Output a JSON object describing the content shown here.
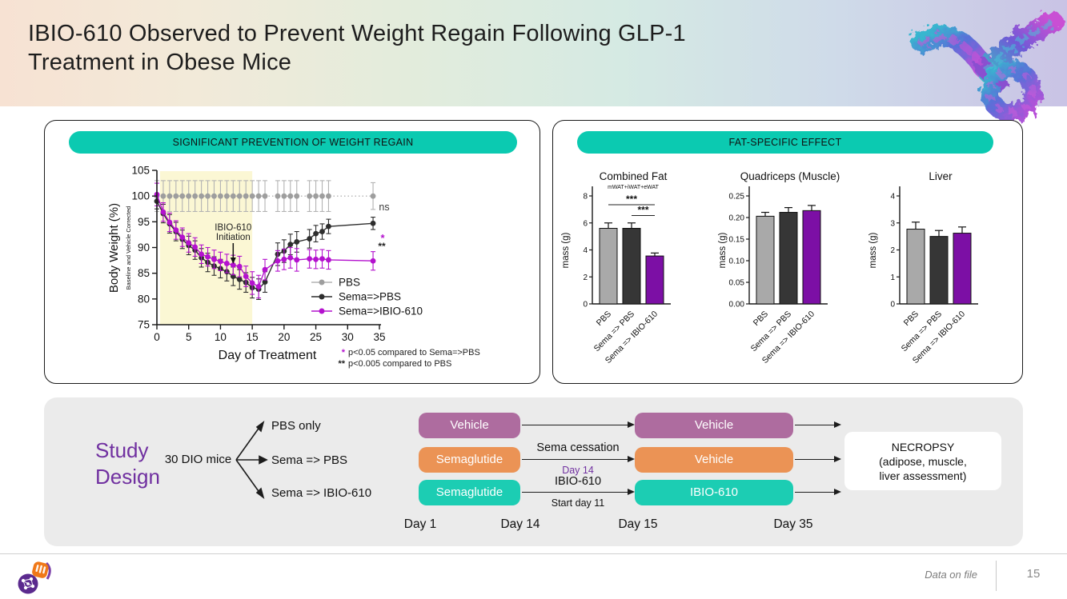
{
  "slide": {
    "title_line1": "IBIO-610 Observed to Prevent Weight Regain Following GLP-1",
    "title_line2": "Treatment in Obese Mice"
  },
  "panels": {
    "weight_regain": {
      "header": "SIGNIFICANT PREVENTION OF WEIGHT REGAIN"
    },
    "fat_effect": {
      "header": "FAT-SPECIFIC EFFECT"
    }
  },
  "chart_data": [
    {
      "type": "line",
      "title": "",
      "xlabel": "Day of Treatment",
      "ylabel": "Body Weight (%)",
      "ylabel_sub": "Baseline and Vehicle Corrected",
      "xlim": [
        0,
        36
      ],
      "ylim": [
        75,
        105
      ],
      "xticks": [
        0,
        5,
        10,
        15,
        20,
        25,
        30,
        35
      ],
      "yticks": [
        75,
        80,
        85,
        90,
        95,
        100,
        105
      ],
      "grid": false,
      "legend_position": "inside lower right",
      "shaded_region": {
        "x_start": 0.5,
        "x_end": 15,
        "color": "#fbf7d4"
      },
      "annotation": {
        "lines": [
          "IBIO-610",
          "Initiation"
        ],
        "arrow_day": 12,
        "arrow_value": 88
      },
      "sig_marks": [
        {
          "text": "ns",
          "color": "#3a3a3a"
        },
        {
          "text": "*",
          "color": "#b412ce"
        },
        {
          "text": "**",
          "color": "#222222"
        }
      ],
      "footnotes": [
        {
          "marker": "*",
          "marker_color": "#b412ce",
          "text": "p<0.05 compared to Sema=>PBS"
        },
        {
          "marker": "**",
          "marker_color": "#222222",
          "text": "p<0.005 compared to PBS"
        }
      ],
      "x": [
        0,
        1,
        2,
        3,
        4,
        5,
        6,
        7,
        8,
        9,
        10,
        11,
        12,
        13,
        14,
        15,
        16,
        17,
        19,
        20,
        21,
        22,
        24,
        25,
        26,
        27,
        34
      ],
      "series": [
        {
          "name": "PBS",
          "color": "#9e9e9e",
          "style": "dotted",
          "values": [
            100,
            100,
            100,
            100,
            100,
            100,
            100,
            100,
            100,
            100,
            100,
            100,
            100,
            100,
            100,
            100,
            100,
            100,
            100,
            100,
            100,
            100,
            100,
            100,
            100,
            100,
            100
          ],
          "errors": [
            3,
            3,
            3,
            3,
            3,
            3,
            3,
            3,
            3,
            3,
            3,
            3,
            3,
            3,
            3,
            3,
            3,
            3,
            3,
            3,
            3,
            3,
            3,
            3,
            3,
            3,
            2.6
          ]
        },
        {
          "name": "Sema=>PBS",
          "color": "#2e2e2e",
          "style": "solid",
          "values": [
            99,
            96.6,
            94.6,
            93.1,
            91.6,
            90.4,
            89.5,
            88,
            87.1,
            86.4,
            85.9,
            85.3,
            84.4,
            83.8,
            83.2,
            82.2,
            81.9,
            83.3,
            88.7,
            89.3,
            90.6,
            91.1,
            91.7,
            92.7,
            93.1,
            94.1,
            94.7
          ],
          "errors": [
            1.5,
            1.8,
            1.8,
            1.8,
            1.8,
            1.8,
            1.8,
            1.8,
            1.8,
            1.8,
            1.8,
            1.8,
            1.8,
            1.9,
            1.9,
            2,
            2,
            2,
            2.2,
            2.2,
            2,
            2,
            1.8,
            1.6,
            1.5,
            1.4,
            1.2
          ]
        },
        {
          "name": "Sema=>IBIO-610",
          "color": "#b412ce",
          "style": "solid",
          "values": [
            100.3,
            96.9,
            94.9,
            93.4,
            92,
            90.9,
            90.1,
            88.7,
            88.2,
            87.7,
            87.3,
            86.9,
            86.6,
            86.3,
            84.4,
            83.1,
            82.4,
            85.7,
            87.4,
            87.7,
            88,
            87.6,
            87.8,
            87.7,
            87.8,
            87.6,
            87.4
          ],
          "errors": [
            2.2,
            1.8,
            1.8,
            1.8,
            1.8,
            1.8,
            1.8,
            1.8,
            1.8,
            1.8,
            1.8,
            1.8,
            1.9,
            2,
            2,
            2.2,
            2.2,
            2,
            2,
            2,
            2,
            2.2,
            1.8,
            1.8,
            1.8,
            1.8,
            1.8
          ]
        }
      ]
    },
    {
      "type": "bar",
      "title": "Combined Fat",
      "subtitle": "mWAT+iWAT+eWAT",
      "ylabel": "mass (g)",
      "ylim": [
        0,
        8
      ],
      "yticks": [
        0,
        2,
        4,
        6,
        8
      ],
      "tick_decimals": 0,
      "categories": [
        "PBS",
        "Sema => PBS",
        "Sema => IBIO-610"
      ],
      "values": [
        5.6,
        5.6,
        3.55
      ],
      "errors": [
        0.4,
        0.4,
        0.22
      ],
      "bar_colors": [
        "#a9a9a9",
        "#363636",
        "#7c0fa5"
      ],
      "sig_brackets": [
        {
          "from": 0,
          "to": 2,
          "value": 7.35,
          "label": "***"
        },
        {
          "from": 1,
          "to": 2,
          "value": 6.55,
          "label": "***"
        }
      ]
    },
    {
      "type": "bar",
      "title": "Quadriceps (Muscle)",
      "subtitle": "",
      "ylabel": "mass (g)",
      "ylim": [
        0,
        0.25
      ],
      "yticks": [
        0,
        0.05,
        0.1,
        0.15,
        0.2,
        0.25
      ],
      "tick_decimals": 2,
      "categories": [
        "PBS",
        "Sema => PBS",
        "Sema => IBIO-610"
      ],
      "values": [
        0.203,
        0.212,
        0.216
      ],
      "errors": [
        0.009,
        0.011,
        0.012
      ],
      "bar_colors": [
        "#a9a9a9",
        "#363636",
        "#7c0fa5"
      ],
      "sig_brackets": []
    },
    {
      "type": "bar",
      "title": "Liver",
      "subtitle": "",
      "ylabel": "mass (g)",
      "ylim": [
        0,
        4
      ],
      "yticks": [
        0,
        1,
        2,
        3,
        4
      ],
      "tick_decimals": 0,
      "categories": [
        "PBS",
        "Sema => PBS",
        "Sema => IBIO-610"
      ],
      "values": [
        2.77,
        2.5,
        2.62
      ],
      "errors": [
        0.26,
        0.22,
        0.23
      ],
      "bar_colors": [
        "#a9a9a9",
        "#363636",
        "#7c0fa5"
      ],
      "sig_brackets": []
    }
  ],
  "study_design": {
    "label": "Study Design",
    "cohort": "30 DIO mice",
    "arms": [
      {
        "name": "PBS only",
        "stage1": "Vehicle",
        "stage2": "Vehicle",
        "color": "#ae6c9f",
        "mid_label": "",
        "mid_sublabel": ""
      },
      {
        "name": "Sema => PBS",
        "stage1": "Semaglutide",
        "stage2": "Vehicle",
        "color": "#eb9355",
        "mid_label": "Sema cessation",
        "mid_sublabel": "Day 14"
      },
      {
        "name": "Sema => IBIO-610",
        "stage1": "Semaglutide",
        "stage2": "IBIO-610",
        "color": "#1ccdb3",
        "mid_label": "IBIO-610",
        "mid_sublabel": "Start day 11"
      }
    ],
    "timeline": [
      "Day 1",
      "Day 14",
      "Day 15",
      "Day 35"
    ],
    "endpoint_lines": [
      "NECROPSY",
      "(adipose, muscle,",
      "liver assessment)"
    ]
  },
  "footer": {
    "note": "Data on file",
    "page": "15"
  },
  "colors": {
    "header_pill_teal": "#0bcab1",
    "accent_purple": "#7030a0",
    "line_purple": "#b412ce",
    "bar_purple": "#7c0fa5",
    "pill_mauve": "#ae6c9f",
    "pill_orange": "#eb9355",
    "pill_teal": "#1ccdb3",
    "shaded_band_yellow": "#fbf7d4"
  },
  "icons": {
    "logo": "ibio-logo",
    "top_right_image": "antibody-structure"
  }
}
